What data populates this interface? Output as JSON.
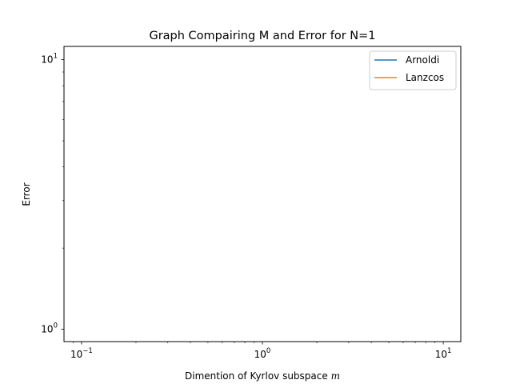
{
  "chart_data": {
    "type": "line",
    "title": "Graph Compairing M and Error for N=1",
    "xlabel_text": "Dimention of Kyrlov subspace ",
    "xlabel_var": "m",
    "ylabel": "Error",
    "xscale": "log",
    "yscale": "log",
    "xlim": [
      0.08,
      12.5
    ],
    "ylim": [
      0.9,
      11.2
    ],
    "grid": false,
    "legend_position": "top-right",
    "xticks": [
      {
        "value": 0.1,
        "base": "10",
        "exp": "−1"
      },
      {
        "value": 1,
        "base": "10",
        "exp": "0"
      },
      {
        "value": 10,
        "base": "10",
        "exp": "1"
      }
    ],
    "yticks": [
      {
        "value": 1,
        "base": "10",
        "exp": "0"
      },
      {
        "value": 10,
        "base": "10",
        "exp": "1"
      }
    ],
    "series": [
      {
        "name": "Arnoldi",
        "color": "#1f77b4",
        "x": [],
        "y": []
      },
      {
        "name": "Lanzcos",
        "color": "#ff7f0e",
        "x": [],
        "y": []
      }
    ]
  }
}
